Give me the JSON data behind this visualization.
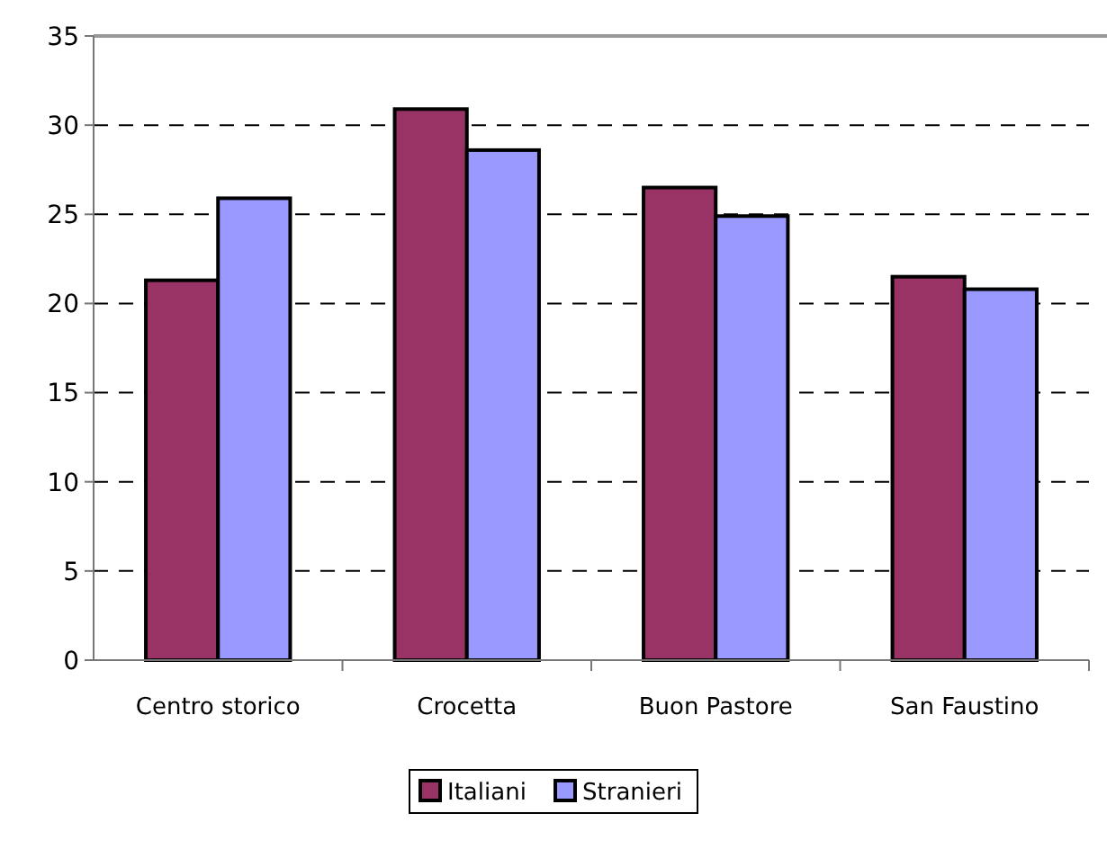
{
  "chart_data": {
    "type": "bar",
    "categories": [
      "Centro storico",
      "Crocetta",
      "Buon Pastore",
      "San Faustino"
    ],
    "series": [
      {
        "name": "Italiani",
        "color": "#993366",
        "values": [
          21.3,
          30.9,
          26.5,
          21.5
        ]
      },
      {
        "name": "Stranieri",
        "color": "#9999ff",
        "values": [
          25.9,
          28.6,
          24.9,
          20.8
        ]
      }
    ],
    "ylim": [
      0,
      35
    ],
    "yticks": [
      0,
      5,
      10,
      15,
      20,
      25,
      30,
      35
    ],
    "grid": "y",
    "line_style": "dashed",
    "legend": "bottom"
  }
}
